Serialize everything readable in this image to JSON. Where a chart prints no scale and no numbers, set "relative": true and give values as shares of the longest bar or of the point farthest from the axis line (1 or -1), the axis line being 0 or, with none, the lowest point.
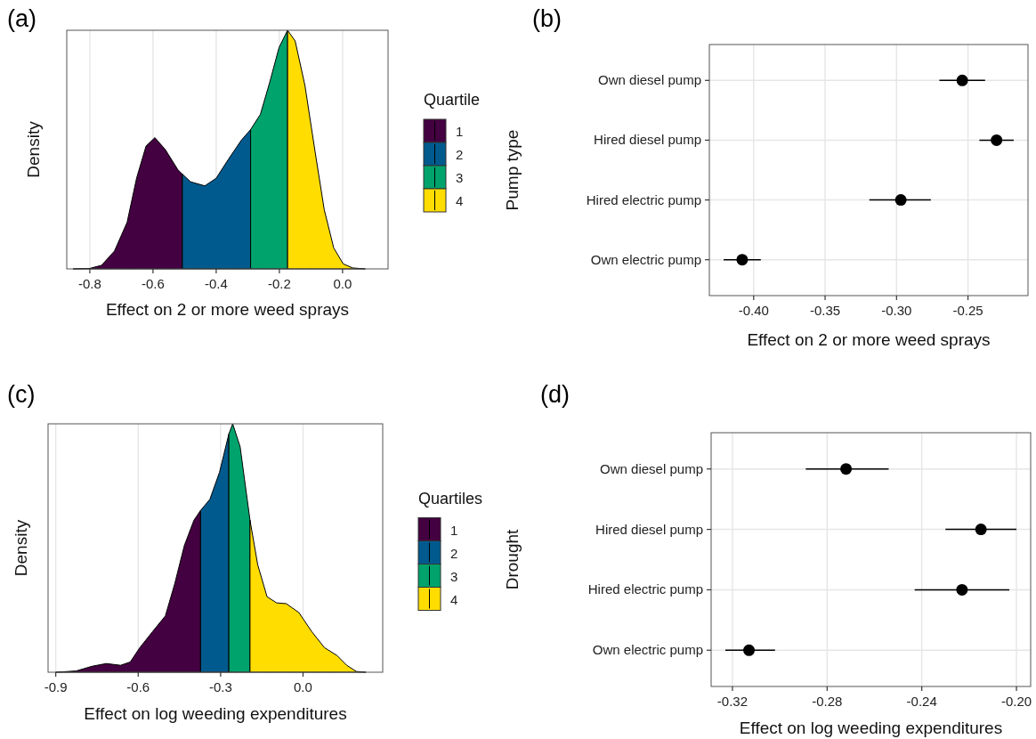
{
  "chart_data": [
    {
      "type": "area",
      "title": "(a)",
      "xlabel": "Effect on  2 or more weed sprays",
      "ylabel": "Density",
      "legend_title": "Quartile",
      "legend": "right",
      "relative": true,
      "grid": "x",
      "xlim": [
        -0.873,
        0.144
      ],
      "xticks": [
        -0.8,
        -0.6,
        -0.4,
        -0.2,
        {
          "value": 0,
          "label": "0.0"
        }
      ],
      "series": [
        {
          "name": "1",
          "color": "#440141",
          "x": [
            -0.853,
            -0.8,
            -0.763,
            -0.722,
            -0.682,
            -0.652,
            -0.622,
            -0.594,
            -0.561,
            -0.521,
            -0.507
          ],
          "values": [
            0,
            0.002,
            0.015,
            0.075,
            0.195,
            0.38,
            0.515,
            0.55,
            0.5,
            0.415,
            0.397
          ]
        },
        {
          "name": "2",
          "color": "#005a8e",
          "x": [
            -0.507,
            -0.481,
            -0.436,
            -0.4,
            -0.361,
            -0.32,
            -0.291
          ],
          "values": [
            0.397,
            0.365,
            0.348,
            0.38,
            0.46,
            0.54,
            0.584
          ]
        },
        {
          "name": "3",
          "color": "#00a36c",
          "x": [
            -0.291,
            -0.26,
            -0.231,
            -0.201,
            -0.174
          ],
          "values": [
            0.584,
            0.648,
            0.78,
            0.928,
            1
          ]
        },
        {
          "name": "4",
          "color": "#ffdd00",
          "x": [
            -0.174,
            -0.15,
            -0.119,
            -0.088,
            -0.058,
            -0.028,
            0.002,
            0.032,
            0.072
          ],
          "values": [
            1,
            0.955,
            0.768,
            0.5,
            0.248,
            0.088,
            0.021,
            0.004,
            0
          ]
        }
      ]
    },
    {
      "type": "scatter",
      "title": "(b)",
      "xlabel": "Effect on  2 or more weed sprays",
      "ylabel": "Pump type",
      "orientation": "horizontal",
      "grid": true,
      "marker": "circle",
      "color": "#000000",
      "xlim": [
        -0.431,
        -0.208
      ],
      "xticks": [
        {
          "value": -0.4,
          "label": "-0.40"
        },
        -0.35,
        {
          "value": -0.3,
          "label": "-0.30"
        },
        -0.25
      ],
      "categories": [
        "Own diesel pump",
        "Hired diesel pump",
        "Hired electric pump",
        "Own electric pump"
      ],
      "values": [
        -0.254,
        -0.23,
        -0.297,
        -0.408
      ],
      "errors": [
        [
          -0.27,
          -0.238
        ],
        [
          -0.242,
          -0.218
        ],
        [
          -0.319,
          -0.276
        ],
        [
          -0.421,
          -0.395
        ]
      ]
    },
    {
      "type": "area",
      "title": "(c)",
      "xlabel": "Effect on log weeding expenditures",
      "ylabel": "Density",
      "legend_title": "Quartiles",
      "legend": "right",
      "relative": true,
      "grid": "x",
      "xlim": [
        -0.928,
        0.29
      ],
      "xticks": [
        -0.9,
        -0.6,
        -0.3,
        {
          "value": 0,
          "label": "0.0"
        }
      ],
      "series": [
        {
          "name": "1",
          "color": "#440141",
          "x": [
            -0.9,
            -0.826,
            -0.768,
            -0.716,
            -0.664,
            -0.629,
            -0.594,
            -0.548,
            -0.501,
            -0.467,
            -0.432,
            -0.397,
            -0.373
          ],
          "values": [
            0,
            0.005,
            0.024,
            0.035,
            0.028,
            0.041,
            0.099,
            0.163,
            0.227,
            0.356,
            0.51,
            0.612,
            0.651
          ]
        },
        {
          "name": "2",
          "color": "#005a8e",
          "x": [
            -0.373,
            -0.339,
            -0.304,
            -0.27
          ],
          "values": [
            0.651,
            0.696,
            0.805,
            0.959
          ]
        },
        {
          "name": "3",
          "color": "#00a36c",
          "x": [
            -0.27,
            -0.256,
            -0.229,
            -0.193
          ],
          "values": [
            0.959,
            1,
            0.908,
            0.612
          ]
        },
        {
          "name": "4",
          "color": "#ffdd00",
          "x": [
            -0.193,
            -0.165,
            -0.131,
            -0.096,
            -0.061,
            -0.015,
            0.032,
            0.078,
            0.124,
            0.159,
            0.194,
            0.229
          ],
          "values": [
            0.612,
            0.433,
            0.304,
            0.279,
            0.276,
            0.24,
            0.163,
            0.099,
            0.067,
            0.028,
            0.003,
            0
          ]
        }
      ]
    },
    {
      "type": "scatter",
      "title": "(d)",
      "xlabel": "Effect on log weeding expenditures",
      "ylabel": "Drought",
      "orientation": "horizontal",
      "grid": true,
      "marker": "circle",
      "color": "#000000",
      "xlim": [
        -0.329,
        -0.194
      ],
      "xticks": [
        -0.32,
        -0.28,
        -0.24,
        {
          "value": -0.2,
          "label": "-0.20"
        }
      ],
      "categories": [
        "Own diesel pump",
        "Hired diesel pump",
        "Hired electric pump",
        "Own electric pump"
      ],
      "values": [
        -0.272,
        -0.215,
        -0.223,
        -0.313
      ],
      "errors": [
        [
          -0.289,
          -0.254
        ],
        [
          -0.23,
          -0.2
        ],
        [
          -0.243,
          -0.203
        ],
        [
          -0.323,
          -0.302
        ]
      ]
    }
  ]
}
